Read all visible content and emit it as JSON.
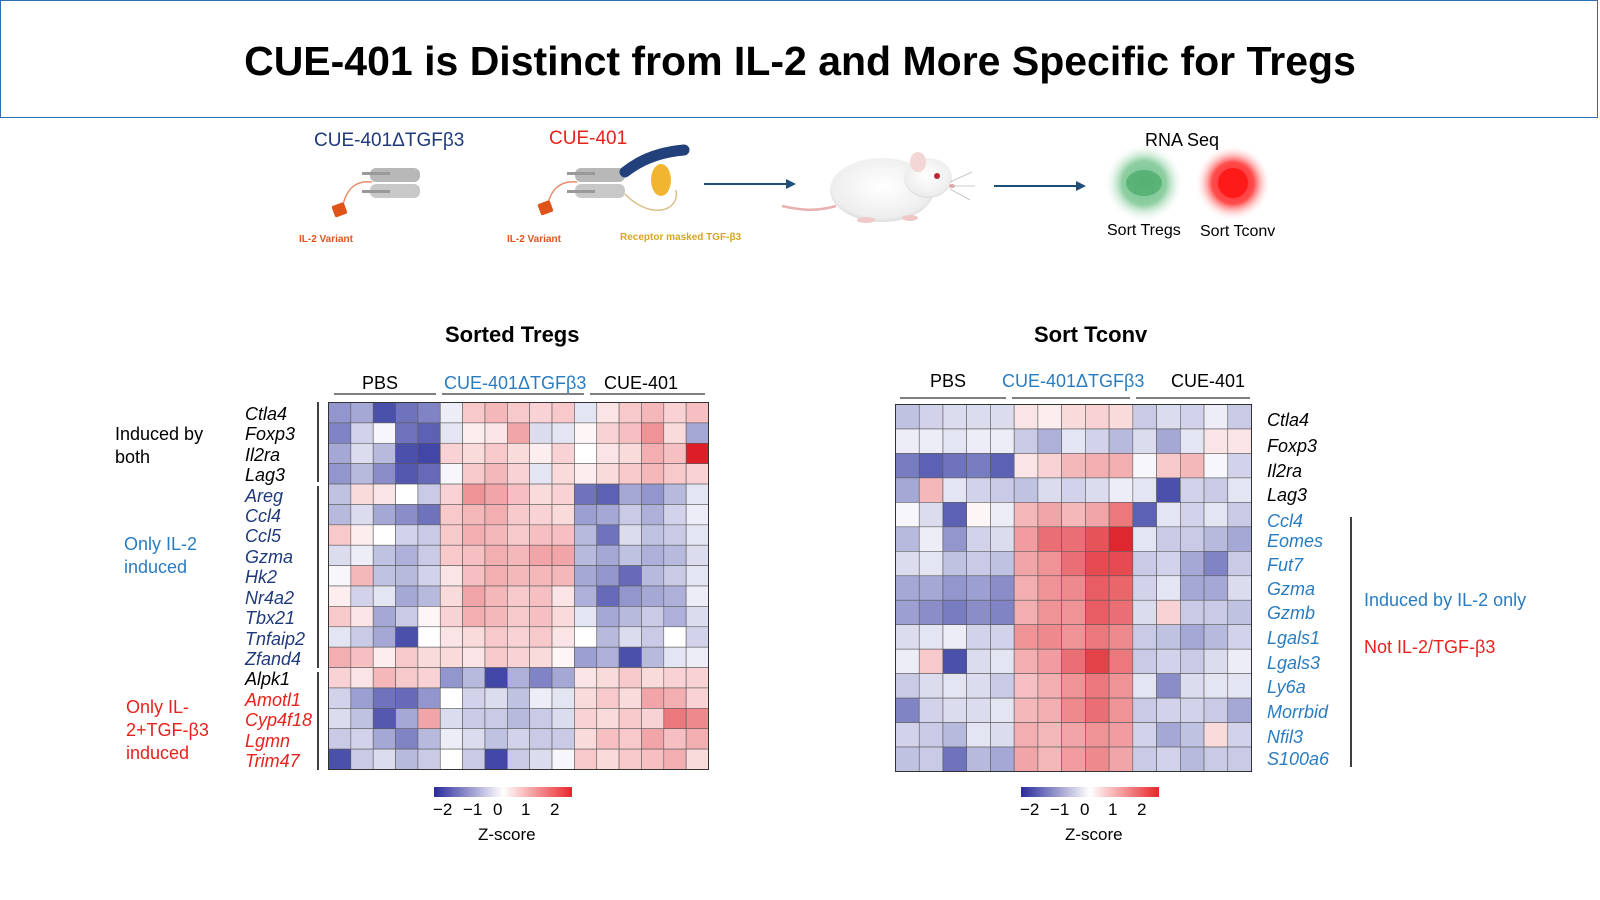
{
  "title": "CUE-401 is Distinct from IL-2 and More Specific for Tregs",
  "schematic": {
    "construct1_label": "CUE-401ΔTGFβ3",
    "construct1_sub": "IL-2 Variant",
    "construct2_label": "CUE-401",
    "construct2_sub1": "IL-2 Variant",
    "construct2_sub2": "Receptor masked TGF-β3",
    "rnaseq_label": "RNA Seq",
    "sort_tregs": "Sort Tregs",
    "sort_tconv": "Sort Tconv"
  },
  "colors": {
    "dark_blue": "#1f3a7a",
    "mid_blue": "#2a7cc0",
    "red": "#e8221d",
    "orange": "#e0531b",
    "gold": "#d9a520"
  },
  "chart_data": [
    {
      "type": "heatmap",
      "title": "Sorted Tregs",
      "columns": 17,
      "column_groups": [
        {
          "name": "PBS",
          "count": 5
        },
        {
          "name": "CUE-401ΔTGFβ3",
          "count": 6
        },
        {
          "name": "CUE-401",
          "count": 6
        }
      ],
      "rows": [
        "Ctla4",
        "Foxp3",
        "Il2ra",
        "Lag3",
        "Areg",
        "Ccl4",
        "Ccl5",
        "Gzma",
        "Hk2",
        "Nr4a2",
        "Tbx21",
        "Tnfaip2",
        "Zfand4",
        "Alpk1",
        "Amotl1",
        "Cyp4f18",
        "Lgmn",
        "Trim47"
      ],
      "row_groups": [
        {
          "label": "Induced by both",
          "start": 0,
          "end": 3
        },
        {
          "label": "Only IL-2 induced",
          "start": 4,
          "end": 12
        },
        {
          "label": "Only IL-2+TGF-β3 induced",
          "start": 13,
          "end": 17
        }
      ],
      "zlim": [
        -2.5,
        2.5
      ],
      "values": [
        [
          -1.2,
          -1.0,
          -2.0,
          -1.6,
          -1.4,
          -0.2,
          0.6,
          0.8,
          0.6,
          0.5,
          0.6,
          -0.3,
          0.3,
          0.6,
          0.8,
          0.5,
          0.7
        ],
        [
          -1.4,
          -0.5,
          -0.1,
          -1.6,
          -1.8,
          -0.3,
          0.2,
          0.3,
          1.0,
          -0.4,
          -0.3,
          0.1,
          0.5,
          0.7,
          1.2,
          0.4,
          -1.0
        ],
        [
          -1.0,
          -0.4,
          -0.8,
          -2.0,
          -2.1,
          0.5,
          0.4,
          0.6,
          0.4,
          0.2,
          0.5,
          0.0,
          0.3,
          0.4,
          0.9,
          0.7,
          2.6
        ],
        [
          -1.2,
          -0.8,
          -1.3,
          -1.9,
          -1.7,
          -0.1,
          0.6,
          0.8,
          0.5,
          -0.3,
          0.4,
          0.2,
          0.4,
          0.6,
          0.8,
          0.6,
          0.5
        ],
        [
          -0.7,
          0.4,
          0.3,
          0.0,
          -0.6,
          0.5,
          1.2,
          1.0,
          0.7,
          0.4,
          0.5,
          -1.6,
          -1.8,
          -1.0,
          -1.2,
          -0.8,
          -0.3
        ],
        [
          -0.8,
          -0.4,
          -1.0,
          -1.3,
          -1.6,
          0.6,
          0.8,
          0.9,
          0.6,
          0.5,
          0.4,
          -1.1,
          -1.0,
          -0.6,
          -0.9,
          -0.5,
          -0.2
        ],
        [
          0.6,
          0.2,
          0.0,
          -0.5,
          -0.6,
          0.6,
          0.9,
          0.8,
          0.6,
          0.7,
          0.7,
          -0.8,
          -1.6,
          -0.4,
          -0.7,
          -0.6,
          -0.3
        ],
        [
          -0.4,
          -0.2,
          -0.7,
          -0.9,
          -0.6,
          0.6,
          0.7,
          0.9,
          0.8,
          1.0,
          1.0,
          -0.8,
          -1.0,
          -0.7,
          -0.9,
          -0.8,
          -0.4
        ],
        [
          -0.1,
          0.8,
          -0.7,
          -0.8,
          -0.5,
          0.3,
          0.7,
          0.9,
          0.8,
          0.8,
          0.8,
          -1.0,
          -1.2,
          -1.7,
          -0.8,
          -0.6,
          -0.3
        ],
        [
          0.2,
          -0.5,
          -0.3,
          -1.0,
          -0.8,
          0.4,
          1.0,
          0.8,
          0.6,
          0.7,
          0.3,
          -0.9,
          -1.7,
          -1.2,
          -1.0,
          -0.9,
          -0.2
        ],
        [
          0.6,
          0.3,
          -1.0,
          -0.6,
          0.1,
          0.5,
          0.9,
          0.8,
          0.6,
          0.7,
          0.4,
          -0.3,
          -1.0,
          -0.8,
          -0.6,
          -0.9,
          -0.4
        ],
        [
          -0.3,
          -0.6,
          -1.0,
          -2.0,
          0.0,
          0.3,
          0.4,
          0.6,
          0.5,
          0.6,
          0.3,
          0.0,
          -0.8,
          -0.4,
          -0.6,
          0.0,
          -0.5
        ],
        [
          0.9,
          0.7,
          0.2,
          0.6,
          0.4,
          0.4,
          0.3,
          0.6,
          0.5,
          0.4,
          0.1,
          -1.1,
          -0.9,
          -2.0,
          -0.8,
          -0.3,
          -0.2
        ],
        [
          0.5,
          0.3,
          0.8,
          0.6,
          0.5,
          -1.2,
          -0.8,
          -2.1,
          -0.9,
          -1.4,
          -1.0,
          0.3,
          0.4,
          0.6,
          0.4,
          0.5,
          0.5
        ],
        [
          -0.5,
          -1.1,
          -1.6,
          -1.7,
          -1.2,
          0.0,
          -0.5,
          -0.4,
          -0.7,
          -0.2,
          -0.3,
          0.4,
          0.6,
          0.4,
          1.0,
          0.9,
          0.5
        ],
        [
          -0.4,
          -0.7,
          -1.9,
          -1.0,
          1.0,
          -0.4,
          -0.6,
          -0.6,
          -0.8,
          -0.6,
          -0.4,
          0.5,
          0.4,
          0.6,
          0.5,
          1.5,
          1.3
        ],
        [
          -0.6,
          -0.5,
          -1.0,
          -1.4,
          -0.8,
          -0.2,
          -0.4,
          -0.7,
          -0.5,
          -0.6,
          -0.6,
          0.4,
          0.7,
          0.6,
          1.0,
          0.7,
          0.9
        ],
        [
          -2.0,
          -0.6,
          -0.4,
          -0.8,
          -0.6,
          0.0,
          -0.6,
          -2.1,
          -0.6,
          -0.4,
          -0.1,
          0.6,
          0.4,
          0.6,
          0.7,
          0.9,
          0.4
        ]
      ],
      "colorbar": {
        "ticks": [
          "−2",
          "−1",
          "0",
          "1",
          "2"
        ],
        "label": "Z-score"
      }
    },
    {
      "type": "heatmap",
      "title": "Sort Tconv",
      "columns": 15,
      "column_groups": [
        {
          "name": "PBS",
          "count": 5
        },
        {
          "name": "CUE-401ΔTGFβ3",
          "count": 5
        },
        {
          "name": "CUE-401",
          "count": 5
        }
      ],
      "rows": [
        "Ctla4",
        "Foxp3",
        "Il2ra",
        "Lag3",
        "Ccl4",
        "Eomes",
        "Fut7",
        "Gzma",
        "Gzmb",
        "Lgals1",
        "Lgals3",
        "Ly6a",
        "Morrbid",
        "Nfil3",
        "S100a6"
      ],
      "row_groups": [
        {
          "label": "Induced by  IL-2 only",
          "start": 4,
          "end": 14
        }
      ],
      "side_note": "Not IL-2/TGF-β3",
      "zlim": [
        -2.5,
        2.5
      ],
      "values": [
        [
          -0.7,
          -0.5,
          -0.4,
          -0.4,
          -0.4,
          0.3,
          0.2,
          0.4,
          0.5,
          0.4,
          -0.6,
          -0.4,
          -0.5,
          -0.2,
          -0.6
        ],
        [
          -0.2,
          -0.2,
          -0.3,
          -0.2,
          -0.2,
          -0.6,
          -0.9,
          -0.3,
          -0.5,
          -0.8,
          -0.4,
          -1.0,
          -0.3,
          0.3,
          0.3
        ],
        [
          -1.5,
          -1.8,
          -1.6,
          -1.5,
          -1.8,
          0.3,
          0.5,
          0.8,
          0.9,
          0.9,
          -0.1,
          0.6,
          0.8,
          -0.1,
          -0.5
        ],
        [
          -1.0,
          0.8,
          -0.3,
          -0.5,
          -0.6,
          -0.7,
          -0.4,
          -0.5,
          -0.4,
          -0.2,
          -0.3,
          -2.0,
          -0.5,
          -0.6,
          -0.3
        ],
        [
          -0.1,
          -0.4,
          -1.8,
          0.1,
          -0.2,
          0.8,
          1.0,
          0.8,
          1.0,
          1.5,
          -1.8,
          -0.3,
          -0.5,
          -0.3,
          -0.6
        ],
        [
          -0.8,
          -0.2,
          -1.2,
          -0.5,
          -0.4,
          1.1,
          1.6,
          1.6,
          1.9,
          2.4,
          -0.3,
          -0.6,
          -0.6,
          -0.8,
          -1.0
        ],
        [
          -0.4,
          -0.3,
          -0.7,
          -0.6,
          -0.7,
          1.0,
          1.2,
          1.6,
          2.0,
          2.0,
          -0.6,
          -0.5,
          -1.0,
          -1.4,
          -0.6
        ],
        [
          -1.0,
          -1.0,
          -1.2,
          -1.1,
          -1.3,
          0.9,
          1.2,
          1.3,
          1.8,
          1.7,
          -0.5,
          -0.3,
          -1.0,
          -1.0,
          -0.4
        ],
        [
          -1.1,
          -1.3,
          -1.5,
          -1.3,
          -1.4,
          0.9,
          1.2,
          1.2,
          1.8,
          1.6,
          -0.4,
          0.5,
          -0.6,
          -0.6,
          -0.7
        ],
        [
          -0.4,
          -0.3,
          -0.2,
          -0.5,
          -0.5,
          1.2,
          1.3,
          1.2,
          1.5,
          1.3,
          -0.6,
          -0.7,
          -1.0,
          -0.8,
          -0.5
        ],
        [
          -0.2,
          0.6,
          -2.0,
          -0.4,
          -0.3,
          0.9,
          1.1,
          1.6,
          2.1,
          1.5,
          -0.6,
          -0.5,
          -0.6,
          -0.4,
          -0.2
        ],
        [
          -0.6,
          -0.4,
          -0.3,
          -0.4,
          -0.6,
          0.7,
          0.9,
          1.2,
          1.5,
          1.2,
          -0.3,
          -1.3,
          -0.4,
          -0.3,
          -0.3
        ],
        [
          -1.4,
          -0.5,
          -0.4,
          -0.4,
          -0.3,
          0.8,
          0.9,
          1.3,
          1.6,
          1.2,
          -0.6,
          -0.5,
          -0.5,
          -0.6,
          -1.0
        ],
        [
          -0.5,
          -0.6,
          -0.8,
          -0.3,
          -0.4,
          0.9,
          0.8,
          1.0,
          1.2,
          1.1,
          -0.5,
          -1.0,
          -0.7,
          0.4,
          -0.5
        ],
        [
          -0.7,
          -0.6,
          -1.6,
          -0.8,
          -1.0,
          1.0,
          0.8,
          1.1,
          1.3,
          1.0,
          -0.6,
          -0.5,
          -0.8,
          -0.6,
          -0.6
        ]
      ],
      "colorbar": {
        "ticks": [
          "−2",
          "−1",
          "0",
          "1",
          "2"
        ],
        "label": "Z-score"
      }
    }
  ]
}
